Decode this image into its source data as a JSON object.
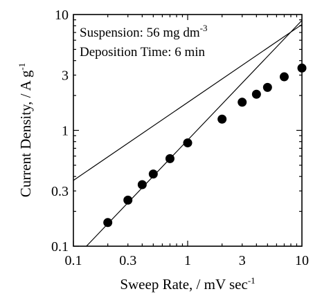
{
  "chart_data": {
    "type": "scatter",
    "xscale": "log",
    "yscale": "log",
    "xlim": [
      0.1,
      10
    ],
    "ylim": [
      0.1,
      10
    ],
    "x_ticks": [
      {
        "value": 0.1,
        "label": "0.1"
      },
      {
        "value": 0.3,
        "label": "0.3"
      },
      {
        "value": 1,
        "label": "1"
      },
      {
        "value": 3,
        "label": "3"
      },
      {
        "value": 10,
        "label": "10"
      }
    ],
    "y_ticks": [
      {
        "value": 0.1,
        "label": "0.1"
      },
      {
        "value": 0.3,
        "label": "0.3"
      },
      {
        "value": 1,
        "label": "1"
      },
      {
        "value": 3,
        "label": "3"
      },
      {
        "value": 10,
        "label": "10"
      }
    ],
    "xlabel": {
      "main": "Sweep Rate, / mV sec",
      "sup": "-1"
    },
    "ylabel": {
      "main": "Current Density, / A g",
      "sup": "-1"
    },
    "annotations": [
      {
        "main": "Suspension: 56 mg dm",
        "sup": "-3"
      },
      {
        "main": "Deposition Time: 6 min",
        "sup": ""
      }
    ],
    "series": [
      {
        "type": "scatter",
        "x": [
          0.2,
          0.3,
          0.4,
          0.5,
          0.7,
          1,
          2,
          3,
          4,
          5,
          7,
          10
        ],
        "y": [
          0.16,
          0.25,
          0.34,
          0.42,
          0.57,
          0.78,
          1.25,
          1.75,
          2.05,
          2.35,
          2.9,
          3.45
        ]
      },
      {
        "type": "line",
        "x": [
          0.1,
          10
        ],
        "y": [
          0.37,
          8.2
        ]
      },
      {
        "type": "line",
        "x": [
          0.13,
          10
        ],
        "y": [
          0.1,
          8.9
        ]
      }
    ]
  }
}
